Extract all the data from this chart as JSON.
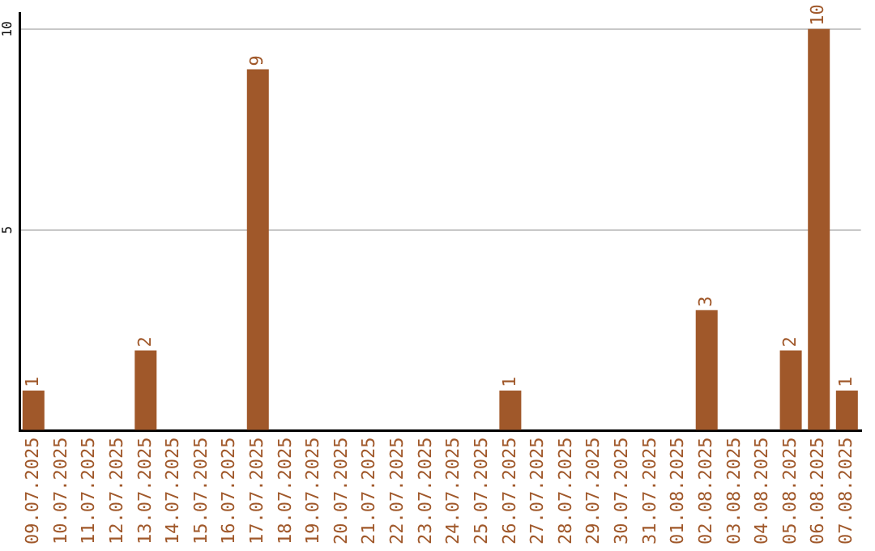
{
  "chart_data": {
    "type": "bar",
    "categories": [
      "09.07.2025",
      "10.07.2025",
      "11.07.2025",
      "12.07.2025",
      "13.07.2025",
      "14.07.2025",
      "15.07.2025",
      "16.07.2025",
      "17.07.2025",
      "18.07.2025",
      "19.07.2025",
      "20.07.2025",
      "21.07.2025",
      "22.07.2025",
      "23.07.2025",
      "24.07.2025",
      "25.07.2025",
      "26.07.2025",
      "27.07.2025",
      "28.07.2025",
      "29.07.2025",
      "30.07.2025",
      "31.07.2025",
      "01.08.2025",
      "02.08.2025",
      "03.08.2025",
      "04.08.2025",
      "05.08.2025",
      "06.08.2025",
      "07.08.2025"
    ],
    "values": [
      1,
      0,
      0,
      0,
      2,
      0,
      0,
      0,
      9,
      0,
      0,
      0,
      0,
      0,
      0,
      0,
      0,
      1,
      0,
      0,
      0,
      0,
      0,
      0,
      3,
      0,
      0,
      2,
      10,
      1
    ],
    "value_labels": [
      "1",
      null,
      null,
      null,
      "2",
      null,
      null,
      null,
      "9",
      null,
      null,
      null,
      null,
      null,
      null,
      null,
      null,
      "1",
      null,
      null,
      null,
      null,
      null,
      null,
      "3",
      null,
      null,
      "2",
      "10",
      "1"
    ],
    "color": "#a0582a",
    "ylim": [
      0,
      10.4
    ],
    "yticks": [
      {
        "value": 0,
        "label": null
      },
      5,
      10
    ],
    "grid": "y",
    "legend": false
  }
}
